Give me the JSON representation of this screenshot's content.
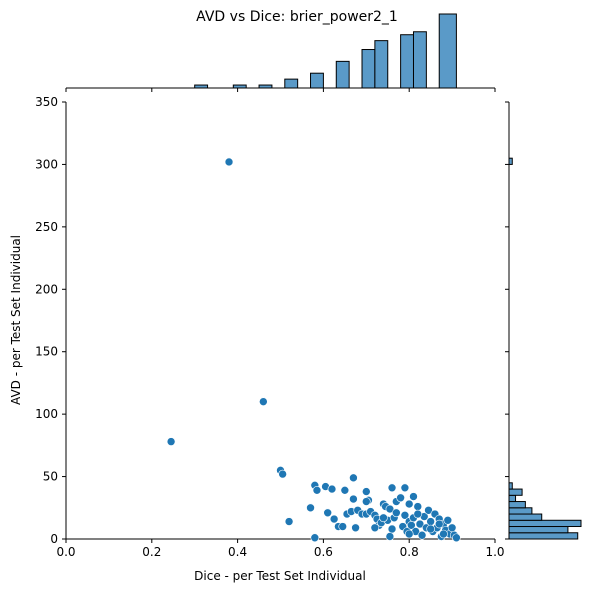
{
  "chart_data": {
    "type": "scatter",
    "title": "AVD vs Dice: brier_power2_1",
    "xlabel": "Dice - per Test Set Individual",
    "ylabel": "AVD - per Test Set Individual",
    "xlim": [
      0.0,
      1.0
    ],
    "ylim": [
      0,
      350
    ],
    "x_ticks": [
      "0.0",
      "0.2",
      "0.4",
      "0.6",
      "0.8",
      "1.0"
    ],
    "y_ticks": [
      "0",
      "50",
      "100",
      "150",
      "200",
      "250",
      "300",
      "350"
    ],
    "grid": false,
    "marginals": "histograms",
    "color": "#1f77b4",
    "hist_color": "#5a9ac8",
    "points": [
      [
        0.38,
        302
      ],
      [
        0.46,
        110
      ],
      [
        0.245,
        78
      ],
      [
        0.5,
        55
      ],
      [
        0.505,
        52
      ],
      [
        0.52,
        14
      ],
      [
        0.58,
        1
      ],
      [
        0.57,
        25
      ],
      [
        0.58,
        43
      ],
      [
        0.585,
        39
      ],
      [
        0.605,
        42
      ],
      [
        0.62,
        40
      ],
      [
        0.61,
        21
      ],
      [
        0.625,
        16
      ],
      [
        0.635,
        10
      ],
      [
        0.645,
        10
      ],
      [
        0.65,
        39
      ],
      [
        0.655,
        20
      ],
      [
        0.665,
        22
      ],
      [
        0.67,
        49
      ],
      [
        0.67,
        32
      ],
      [
        0.675,
        9
      ],
      [
        0.68,
        23
      ],
      [
        0.69,
        20
      ],
      [
        0.7,
        20
      ],
      [
        0.7,
        38
      ],
      [
        0.705,
        31
      ],
      [
        0.71,
        22
      ],
      [
        0.72,
        19
      ],
      [
        0.725,
        16
      ],
      [
        0.73,
        11
      ],
      [
        0.735,
        13
      ],
      [
        0.74,
        28
      ],
      [
        0.745,
        26
      ],
      [
        0.75,
        15
      ],
      [
        0.755,
        24
      ],
      [
        0.76,
        41
      ],
      [
        0.765,
        17
      ],
      [
        0.755,
        2
      ],
      [
        0.77,
        30
      ],
      [
        0.78,
        33
      ],
      [
        0.785,
        10
      ],
      [
        0.79,
        41
      ],
      [
        0.79,
        19
      ],
      [
        0.795,
        6
      ],
      [
        0.8,
        28
      ],
      [
        0.8,
        14
      ],
      [
        0.805,
        11
      ],
      [
        0.81,
        34
      ],
      [
        0.81,
        17
      ],
      [
        0.815,
        6
      ],
      [
        0.82,
        26
      ],
      [
        0.825,
        12
      ],
      [
        0.83,
        3
      ],
      [
        0.835,
        18
      ],
      [
        0.84,
        9
      ],
      [
        0.845,
        23
      ],
      [
        0.85,
        14
      ],
      [
        0.855,
        6
      ],
      [
        0.86,
        20
      ],
      [
        0.865,
        9
      ],
      [
        0.87,
        16
      ],
      [
        0.875,
        2
      ],
      [
        0.88,
        12
      ],
      [
        0.885,
        7
      ],
      [
        0.89,
        15
      ],
      [
        0.895,
        4
      ],
      [
        0.9,
        9
      ],
      [
        0.905,
        3
      ],
      [
        0.91,
        1
      ],
      [
        0.7,
        30
      ],
      [
        0.72,
        9
      ],
      [
        0.77,
        21
      ],
      [
        0.82,
        20
      ],
      [
        0.85,
        8
      ],
      [
        0.87,
        12
      ],
      [
        0.88,
        4
      ],
      [
        0.8,
        4
      ],
      [
        0.76,
        8
      ],
      [
        0.74,
        17
      ]
    ],
    "x_histogram": {
      "bin_edges": [
        0.24,
        0.27,
        0.3,
        0.33,
        0.36,
        0.39,
        0.42,
        0.45,
        0.48,
        0.51,
        0.54,
        0.57,
        0.6,
        0.63,
        0.66,
        0.69,
        0.72,
        0.75,
        0.78,
        0.81,
        0.84,
        0.87,
        0.91
      ],
      "counts": [
        0,
        0,
        1,
        0,
        0,
        1,
        0,
        1,
        0,
        3,
        0,
        5,
        0,
        9,
        0,
        13,
        16,
        0,
        18,
        19,
        0,
        25
      ]
    },
    "y_histogram": {
      "bin_edges": [
        0,
        5,
        10,
        15,
        20,
        25,
        30,
        35,
        40,
        45,
        50,
        300,
        305
      ],
      "counts": [
        21,
        18,
        22,
        10,
        7,
        5,
        2,
        4,
        1,
        0,
        0,
        1
      ]
    }
  }
}
